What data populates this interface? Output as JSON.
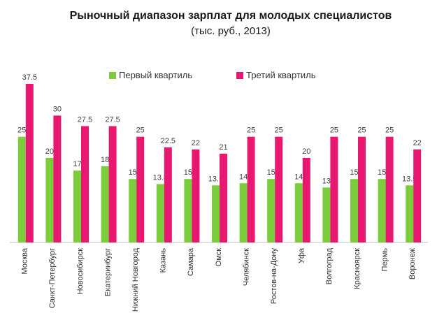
{
  "chart_data": {
    "type": "bar",
    "title": "Рыночный диапазон зарплат для молодых специалистов",
    "subtitle": "(тыс. руб., 2013)",
    "categories": [
      "Москва",
      "Санкт-Петербург",
      "Новосибирск",
      "Екатеринбург",
      "Нижний Новгород",
      "Казань",
      "Самара",
      "Омск",
      "Челябинск",
      "Ростов-на-Дону",
      "Уфа",
      "Волгоград",
      "Красноярск",
      "Пермь",
      "Воронеж"
    ],
    "series": [
      {
        "name": "Первый квартиль",
        "color": "#7ccd3c",
        "values": [
          25,
          20,
          17,
          18,
          15,
          13.8,
          15,
          13.5,
          14,
          15,
          14,
          13,
          15,
          15,
          13.5
        ],
        "labels": [
          "25",
          "20",
          "17",
          "18",
          "15",
          "13.8",
          "15",
          "13.5",
          "14",
          "15",
          "14",
          "13",
          "15",
          "15",
          "13.5"
        ]
      },
      {
        "name": "Третий квартиль",
        "color": "#e8176f",
        "values": [
          37.5,
          30,
          27.5,
          27.5,
          25,
          22.5,
          22,
          21,
          25,
          25,
          20,
          25,
          25,
          25,
          22
        ],
        "labels": [
          "37.5",
          "30",
          "27.5",
          "27.5",
          "25",
          "22.5",
          "22",
          "21",
          "25",
          "25",
          "20",
          "25",
          "25",
          "25",
          "22"
        ]
      }
    ],
    "ylim": [
      0,
      37.5
    ],
    "grid": false,
    "legend_position": "top"
  }
}
